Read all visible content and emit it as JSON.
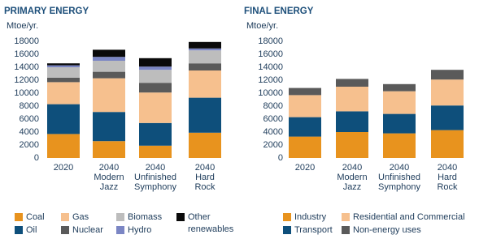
{
  "chart_data": [
    {
      "type": "stacked-bar",
      "title": "PRIMARY ENERGY",
      "y_label": "Mtoe/yr.",
      "categories": [
        "2020",
        "2040 Modern Jazz",
        "2040 Unfinished Symphony",
        "2040 Hard Rock"
      ],
      "ylim": [
        0,
        18000
      ],
      "yticks": [
        0,
        2000,
        4000,
        6000,
        8000,
        10000,
        12000,
        14000,
        16000,
        18000
      ],
      "series": [
        {
          "name": "Coal",
          "color": "#e8931e",
          "values": [
            3700,
            2600,
            1900,
            3900
          ]
        },
        {
          "name": "Oil",
          "color": "#0e4f7b",
          "values": [
            4600,
            4500,
            3500,
            5400
          ]
        },
        {
          "name": "Gas",
          "color": "#f6c08e",
          "values": [
            3400,
            5200,
            4700,
            4200
          ]
        },
        {
          "name": "Nuclear",
          "color": "#5a5a5a",
          "values": [
            700,
            1000,
            1500,
            1100
          ]
        },
        {
          "name": "Biomass",
          "color": "#bdbdbd",
          "values": [
            1600,
            1700,
            2000,
            2000
          ]
        },
        {
          "name": "Hydro",
          "color": "#7b86c4",
          "values": [
            300,
            600,
            500,
            300
          ]
        },
        {
          "name": "Other renewables",
          "color": "#0a0a0a",
          "values": [
            300,
            1100,
            1300,
            1000
          ]
        }
      ]
    },
    {
      "type": "stacked-bar",
      "title": "FINAL ENERGY",
      "y_label": "Mtoe/yr.",
      "categories": [
        "2020",
        "2040 Modern Jazz",
        "2040 Unfinished Symphony",
        "2040 Hard Rock"
      ],
      "ylim": [
        0,
        18000
      ],
      "yticks": [
        0,
        2000,
        4000,
        6000,
        8000,
        10000,
        12000,
        14000,
        16000,
        18000
      ],
      "series": [
        {
          "name": "Industry",
          "color": "#e8931e",
          "values": [
            3300,
            4000,
            3800,
            4300
          ]
        },
        {
          "name": "Transport",
          "color": "#0e4f7b",
          "values": [
            3000,
            3200,
            3000,
            3800
          ]
        },
        {
          "name": "Residential and Commercial",
          "color": "#f6c08e",
          "values": [
            3400,
            3800,
            3500,
            4000
          ]
        },
        {
          "name": "Non-energy uses",
          "color": "#5a5a5a",
          "values": [
            1100,
            1200,
            1100,
            1500
          ]
        }
      ]
    }
  ]
}
